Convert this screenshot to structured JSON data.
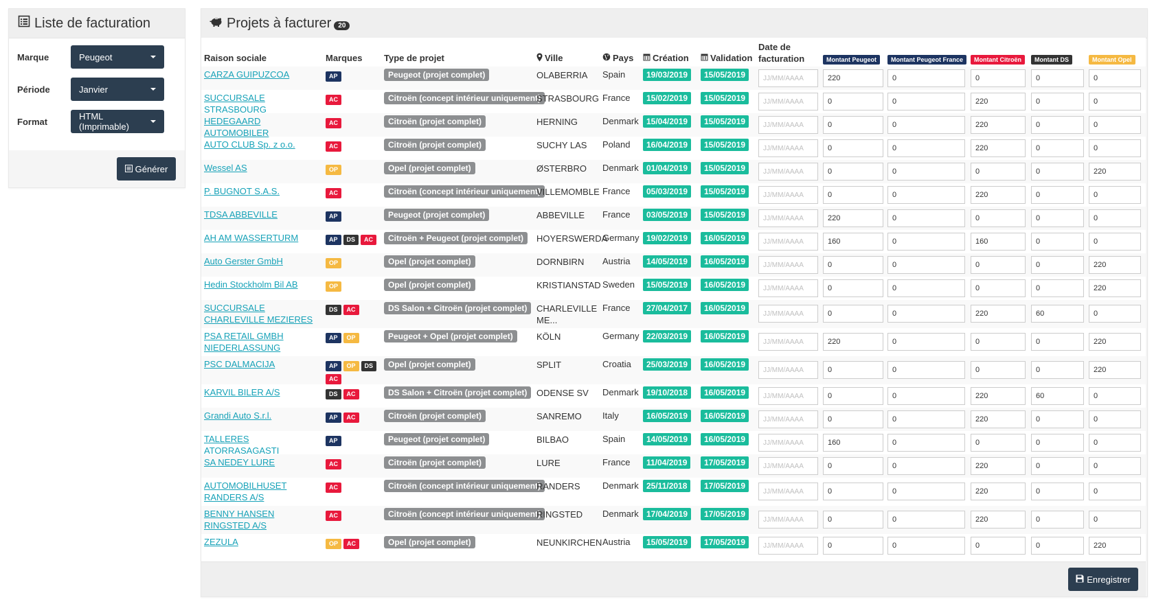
{
  "left_panel": {
    "title": "Liste de facturation",
    "fields": [
      {
        "label": "Marque",
        "value": "Peugeot"
      },
      {
        "label": "Période",
        "value": "Janvier"
      },
      {
        "label": "Format",
        "value": "HTML (Imprimable)"
      }
    ],
    "generate_label": "Générer"
  },
  "main_panel": {
    "title": "Projets à facturer",
    "count": "20",
    "save_label": "Enregistrer"
  },
  "columns": {
    "raison": "Raison sociale",
    "marques": "Marques",
    "type": "Type de projet",
    "ville": "Ville",
    "pays": "Pays",
    "creation": "Création",
    "validation": "Validation",
    "date_fact": "Date de facturation",
    "m_peugeot": "Montant Peugeot",
    "m_peugeot_fr": "Montant Peugeot France",
    "m_citroen": "Montant Citroën",
    "m_ds": "Montant DS",
    "m_opel": "Montant Opel"
  },
  "brand_colors": {
    "AP": "#1d3461",
    "AC": "#e8193c",
    "DS": "#333333",
    "OP": "#f5b942"
  },
  "date_placeholder": "JJ/MM/AAAA",
  "rows": [
    {
      "name": "CARZA GUIPUZCOA",
      "brands": [
        "AP"
      ],
      "type": "Peugeot (projet complet)",
      "city": "OLABERRIA",
      "country": "Spain",
      "created": "19/03/2019",
      "validated": "15/05/2019",
      "amounts": [
        "220",
        "0",
        "0",
        "0",
        "0"
      ]
    },
    {
      "name": "SUCCURSALE STRASBOURG",
      "brands": [
        "AC"
      ],
      "type": "Citroën (concept intérieur uniquement)",
      "city": "STRASBOURG",
      "country": "France",
      "created": "15/02/2019",
      "validated": "15/05/2019",
      "amounts": [
        "0",
        "0",
        "220",
        "0",
        "0"
      ]
    },
    {
      "name": "HEDEGAARD AUTOMOBILER",
      "brands": [
        "AC"
      ],
      "type": "Citroën (projet complet)",
      "city": "HERNING",
      "country": "Denmark",
      "created": "15/04/2019",
      "validated": "15/05/2019",
      "amounts": [
        "0",
        "0",
        "220",
        "0",
        "0"
      ]
    },
    {
      "name": "AUTO CLUB Sp. z o.o.",
      "brands": [
        "AC"
      ],
      "type": "Citroën (projet complet)",
      "city": "SUCHY LAS",
      "country": "Poland",
      "created": "16/04/2019",
      "validated": "15/05/2019",
      "amounts": [
        "0",
        "0",
        "220",
        "0",
        "0"
      ]
    },
    {
      "name": "Wessel AS",
      "brands": [
        "OP"
      ],
      "type": "Opel (projet complet)",
      "city": "ØSTERBRO",
      "country": "Denmark",
      "created": "01/04/2019",
      "validated": "15/05/2019",
      "amounts": [
        "0",
        "0",
        "0",
        "0",
        "220"
      ]
    },
    {
      "name": "P. BUGNOT S.A.S.",
      "brands": [
        "AC"
      ],
      "type": "Citroën (concept intérieur uniquement)",
      "city": "VILLEMOMBLE",
      "country": "France",
      "created": "05/03/2019",
      "validated": "15/05/2019",
      "amounts": [
        "0",
        "0",
        "220",
        "0",
        "0"
      ]
    },
    {
      "name": "TDSA ABBEVILLE",
      "brands": [
        "AP"
      ],
      "type": "Peugeot (projet complet)",
      "city": "ABBEVILLE",
      "country": "France",
      "created": "03/05/2019",
      "validated": "15/05/2019",
      "amounts": [
        "220",
        "0",
        "0",
        "0",
        "0"
      ]
    },
    {
      "name": "AH AM WASSERTURM",
      "brands": [
        "AP",
        "DS",
        "AC"
      ],
      "type": "Citroën + Peugeot (projet complet)",
      "city": "HOYERSWERDA",
      "country": "Germany",
      "created": "19/02/2019",
      "validated": "16/05/2019",
      "amounts": [
        "160",
        "0",
        "160",
        "0",
        "0"
      ]
    },
    {
      "name": "Auto Gerster GmbH",
      "brands": [
        "OP"
      ],
      "type": "Opel (projet complet)",
      "city": "DORNBIRN",
      "country": "Austria",
      "created": "14/05/2019",
      "validated": "16/05/2019",
      "amounts": [
        "0",
        "0",
        "0",
        "0",
        "220"
      ]
    },
    {
      "name": "Hedin Stockholm Bil AB",
      "brands": [
        "OP"
      ],
      "type": "Opel (projet complet)",
      "city": "KRISTIANSTAD",
      "country": "Sweden",
      "created": "15/05/2019",
      "validated": "16/05/2019",
      "amounts": [
        "0",
        "0",
        "0",
        "0",
        "220"
      ]
    },
    {
      "name": "SUCCURSALE CHARLEVILLE MEZIERES",
      "brands": [
        "DS",
        "AC"
      ],
      "type": "DS Salon + Citroën (projet complet)",
      "city": "CHARLEVILLE ME...",
      "country": "France",
      "created": "27/04/2017",
      "validated": "16/05/2019",
      "amounts": [
        "0",
        "0",
        "220",
        "60",
        "0"
      ]
    },
    {
      "name": "PSA RETAIL GMBH NIEDERLASSUNG",
      "brands": [
        "AP",
        "OP"
      ],
      "type": "Peugeot + Opel (projet complet)",
      "city": "KÖLN",
      "country": "Germany",
      "created": "22/03/2019",
      "validated": "16/05/2019",
      "amounts": [
        "220",
        "0",
        "0",
        "0",
        "220"
      ]
    },
    {
      "name": "PSC DALMACIJA",
      "brands": [
        "AP",
        "OP",
        "DS",
        "AC"
      ],
      "type": "Opel (projet complet)",
      "city": "SPLIT",
      "country": "Croatia",
      "created": "25/03/2019",
      "validated": "16/05/2019",
      "amounts": [
        "0",
        "0",
        "0",
        "0",
        "220"
      ]
    },
    {
      "name": "KARVIL BILER A/S",
      "brands": [
        "DS",
        "AC"
      ],
      "type": "DS Salon + Citroën (projet complet)",
      "city": "ODENSE SV",
      "country": "Denmark",
      "created": "19/10/2018",
      "validated": "16/05/2019",
      "amounts": [
        "0",
        "0",
        "220",
        "60",
        "0"
      ]
    },
    {
      "name": "Grandi Auto S.r.l.",
      "brands": [
        "AP",
        "AC"
      ],
      "type": "Citroën (projet complet)",
      "city": "SANREMO",
      "country": "Italy",
      "created": "16/05/2019",
      "validated": "16/05/2019",
      "amounts": [
        "0",
        "0",
        "220",
        "0",
        "0"
      ]
    },
    {
      "name": "TALLERES ATORRASAGASTI",
      "brands": [
        "AP"
      ],
      "type": "Peugeot (projet complet)",
      "city": "BILBAO",
      "country": "Spain",
      "created": "14/05/2019",
      "validated": "16/05/2019",
      "amounts": [
        "160",
        "0",
        "0",
        "0",
        "0"
      ]
    },
    {
      "name": "SA NEDEY LURE",
      "brands": [
        "AC"
      ],
      "type": "Citroën (projet complet)",
      "city": "LURE",
      "country": "France",
      "created": "11/04/2019",
      "validated": "17/05/2019",
      "amounts": [
        "0",
        "0",
        "220",
        "0",
        "0"
      ]
    },
    {
      "name": "AUTOMOBILHUSET RANDERS A/S",
      "brands": [
        "AC"
      ],
      "type": "Citroën (concept intérieur uniquement)",
      "city": "RANDERS",
      "country": "Denmark",
      "created": "25/11/2018",
      "validated": "17/05/2019",
      "amounts": [
        "0",
        "0",
        "220",
        "0",
        "0"
      ]
    },
    {
      "name": "BENNY HANSEN RINGSTED A/S",
      "brands": [
        "AC"
      ],
      "type": "Citroën (concept intérieur uniquement)",
      "city": "RINGSTED",
      "country": "Denmark",
      "created": "17/04/2019",
      "validated": "17/05/2019",
      "amounts": [
        "0",
        "0",
        "220",
        "0",
        "0"
      ]
    },
    {
      "name": "ZEZULA",
      "brands": [
        "OP",
        "AC"
      ],
      "type": "Opel (projet complet)",
      "city": "NEUNKIRCHEN",
      "country": "Austria",
      "created": "15/05/2019",
      "validated": "17/05/2019",
      "amounts": [
        "0",
        "0",
        "0",
        "0",
        "220"
      ]
    }
  ]
}
